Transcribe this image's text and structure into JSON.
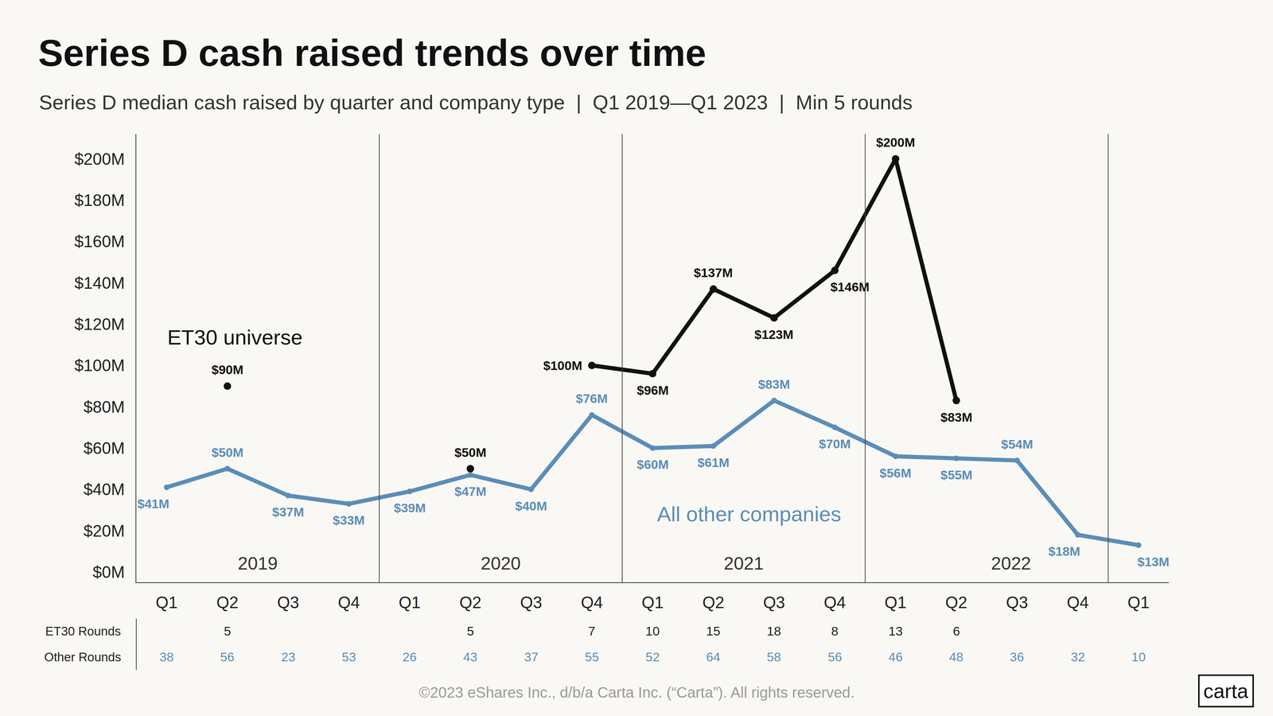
{
  "chart_data": {
    "type": "line",
    "title": "Series D cash raised trends over time",
    "subtitle": "Series D median cash raised by quarter and company type  |  Q1 2019—Q1 2023  |  Min 5 rounds",
    "footer": "©2023 eShares Inc., d/b/a Carta Inc. (“Carta”). All rights reserved.",
    "logo": "carta",
    "categories": [
      "Q1",
      "Q2",
      "Q3",
      "Q4",
      "Q1",
      "Q2",
      "Q3",
      "Q4",
      "Q1",
      "Q2",
      "Q3",
      "Q4",
      "Q1",
      "Q2",
      "Q3",
      "Q4",
      "Q1"
    ],
    "years": [
      "2019",
      "2019",
      "2019",
      "2019",
      "2020",
      "2020",
      "2020",
      "2020",
      "2021",
      "2021",
      "2021",
      "2021",
      "2022",
      "2022",
      "2022",
      "2022",
      null
    ],
    "series": [
      {
        "name": "ET30 universe",
        "color": "#111111",
        "values": [
          null,
          90,
          null,
          null,
          null,
          50,
          null,
          100,
          96,
          137,
          123,
          146,
          200,
          83,
          null,
          null,
          null
        ],
        "value_labels": [
          null,
          "$90M",
          null,
          null,
          null,
          "$50M",
          null,
          "$100M",
          "$96M",
          "$137M",
          "$123M",
          "$146M",
          "$200M",
          "$83M",
          null,
          null,
          null
        ],
        "rounds_label": "ET30 Rounds",
        "rounds": [
          null,
          5,
          null,
          null,
          null,
          5,
          null,
          7,
          10,
          15,
          18,
          8,
          13,
          6,
          null,
          null,
          null
        ]
      },
      {
        "name": "All other companies",
        "color": "#5b8db8",
        "values": [
          41,
          50,
          37,
          33,
          39,
          47,
          40,
          76,
          60,
          61,
          83,
          70,
          56,
          55,
          54,
          18,
          13
        ],
        "value_labels": [
          "$41M",
          "$50M",
          "$37M",
          "$33M",
          "$39M",
          "$47M",
          "$40M",
          "$76M",
          "$60M",
          "$61M",
          "$83M",
          "$70M",
          "$56M",
          "$55M",
          "$54M",
          "$18M",
          "$13M"
        ],
        "rounds_label": "Other Rounds",
        "rounds": [
          38,
          56,
          23,
          53,
          26,
          43,
          37,
          55,
          52,
          64,
          58,
          56,
          46,
          48,
          36,
          32,
          10
        ]
      }
    ],
    "ylim": [
      -5,
      212
    ],
    "yticks": [
      {
        "value": 0,
        "label": "$0M"
      },
      {
        "value": 20,
        "label": "$20M"
      },
      {
        "value": 40,
        "label": "$40M"
      },
      {
        "value": 60,
        "label": "$60M"
      },
      {
        "value": 80,
        "label": "$80M"
      },
      {
        "value": 100,
        "label": "$100M"
      },
      {
        "value": 120,
        "label": "$120M"
      },
      {
        "value": 140,
        "label": "$140M"
      },
      {
        "value": 160,
        "label": "$160M"
      },
      {
        "value": 180,
        "label": "$180M"
      },
      {
        "value": 200,
        "label": "$200M"
      }
    ],
    "grid": false,
    "data_labels": true,
    "marker": "circle"
  }
}
